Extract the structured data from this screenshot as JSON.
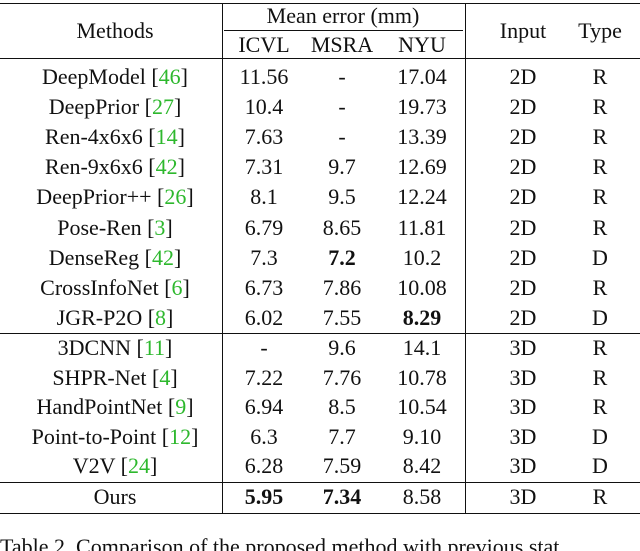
{
  "table": {
    "header": {
      "methods": "Methods",
      "mean_error": "Mean error (mm)",
      "datasets": [
        "ICVL",
        "MSRA",
        "NYU"
      ],
      "input": "Input",
      "type": "Type"
    },
    "groups": [
      [
        {
          "method": "DeepModel",
          "ref": "46",
          "values": [
            "11.56",
            "-",
            "17.04"
          ],
          "input": "2D",
          "type": "R",
          "bold": []
        },
        {
          "method": "DeepPrior",
          "ref": "27",
          "values": [
            "10.4",
            "-",
            "19.73"
          ],
          "input": "2D",
          "type": "R",
          "bold": []
        },
        {
          "method": "Ren-4x6x6",
          "ref": "14",
          "values": [
            "7.63",
            "-",
            "13.39"
          ],
          "input": "2D",
          "type": "R",
          "bold": []
        },
        {
          "method": "Ren-9x6x6",
          "ref": "42",
          "values": [
            "7.31",
            "9.7",
            "12.69"
          ],
          "input": "2D",
          "type": "R",
          "bold": []
        },
        {
          "method": "DeepPrior++",
          "ref": "26",
          "values": [
            "8.1",
            "9.5",
            "12.24"
          ],
          "input": "2D",
          "type": "R",
          "bold": []
        },
        {
          "method": "Pose-Ren",
          "ref": "3",
          "values": [
            "6.79",
            "8.65",
            "11.81"
          ],
          "input": "2D",
          "type": "R",
          "bold": []
        },
        {
          "method": "DenseReg",
          "ref": "42",
          "values": [
            "7.3",
            "7.2",
            "10.2"
          ],
          "input": "2D",
          "type": "D",
          "bold": [
            1
          ]
        },
        {
          "method": "CrossInfoNet",
          "ref": "6",
          "values": [
            "6.73",
            "7.86",
            "10.08"
          ],
          "input": "2D",
          "type": "R",
          "bold": []
        },
        {
          "method": "JGR-P2O",
          "ref": "8",
          "values": [
            "6.02",
            "7.55",
            "8.29"
          ],
          "input": "2D",
          "type": "D",
          "bold": [
            2
          ]
        }
      ],
      [
        {
          "method": "3DCNN",
          "ref": "11",
          "values": [
            "-",
            "9.6",
            "14.1"
          ],
          "input": "3D",
          "type": "R",
          "bold": []
        },
        {
          "method": "SHPR-Net",
          "ref": "4",
          "values": [
            "7.22",
            "7.76",
            "10.78"
          ],
          "input": "3D",
          "type": "R",
          "bold": []
        },
        {
          "method": "HandPointNet",
          "ref": "9",
          "values": [
            "6.94",
            "8.5",
            "10.54"
          ],
          "input": "3D",
          "type": "R",
          "bold": []
        },
        {
          "method": "Point-to-Point",
          "ref": "12",
          "values": [
            "6.3",
            "7.7",
            "9.10"
          ],
          "input": "3D",
          "type": "D",
          "bold": []
        },
        {
          "method": "V2V",
          "ref": "24",
          "values": [
            "6.28",
            "7.59",
            "8.42"
          ],
          "input": "3D",
          "type": "D",
          "bold": []
        }
      ],
      [
        {
          "method": "Ours",
          "ref": null,
          "values": [
            "5.95",
            "7.34",
            "8.58"
          ],
          "input": "3D",
          "type": "R",
          "bold": [
            0,
            1
          ]
        }
      ]
    ],
    "caption": "Table 2. Comparison of the proposed method with previous stat"
  }
}
